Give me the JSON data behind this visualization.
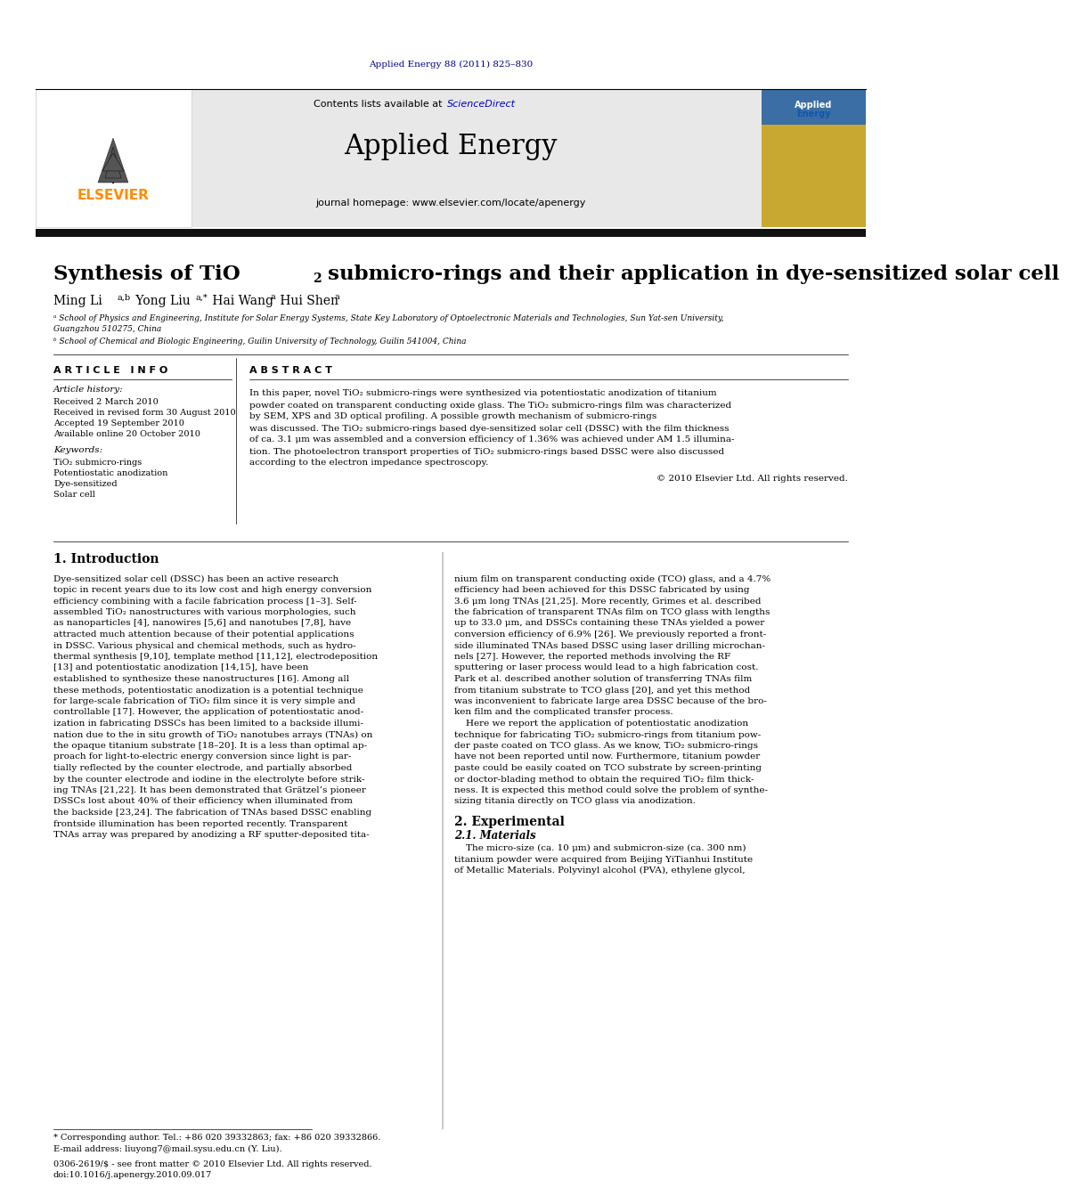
{
  "journal_ref": "Applied Energy 88 (2011) 825–830",
  "journal_ref_color": "#00008B",
  "header_bg": "#E8E8E8",
  "journal_name": "Applied Energy",
  "contents_line": "Contents lists available at ScienceDirect",
  "sciencedirect_color": "#0000CC",
  "homepage_line": "journal homepage: www.elsevier.com/locate/apenergy",
  "elsevier_color": "#FF8C00",
  "thick_bar_color": "#1a1a1a",
  "paper_title": "Synthesis of TiO₂ submicro-rings and their application in dye-sensitized solar cell",
  "affil_a": "ᵃ School of Physics and Engineering, Institute for Solar Energy Systems, State Key Laboratory of Optoelectronic Materials and Technologies, Sun Yat-sen University,",
  "affil_a2": "Guangzhou 510275, China",
  "affil_b": "ᵇ School of Chemical and Biologic Engineering, Guilin University of Technology, Guilin 541004, China",
  "article_info_title": "A R T I C L E   I N F O",
  "abstract_title": "A B S T R A C T",
  "article_history_label": "Article history:",
  "received": "Received 2 March 2010",
  "revised": "Received in revised form 30 August 2010",
  "accepted": "Accepted 19 September 2010",
  "online": "Available online 20 October 2010",
  "keywords_label": "Keywords:",
  "kw1": "TiO₂ submicro-rings",
  "kw2": "Potentiostatic anodization",
  "kw3": "Dye-sensitized",
  "kw4": "Solar cell",
  "abstract_text": "In this paper, novel TiO₂ submicro-rings were synthesized via potentiostatic anodization of titanium\npowder coated on transparent conducting oxide glass. The TiO₂ submicro-rings film was characterized\nby SEM, XPS and 3D optical profiling. A possible growth mechanism of submicro-rings\nwas discussed. The TiO₂ submicro-rings based dye-sensitized solar cell (DSSC) with the film thickness\nof ca. 3.1 μm was assembled and a conversion efficiency of 1.36% was achieved under AM 1.5 illumina-\ntion. The photoelectron transport properties of TiO₂ submicro-rings based DSSC were also discussed\naccording to the electron impedance spectroscopy.",
  "copyright": "© 2010 Elsevier Ltd. All rights reserved.",
  "intro_heading": "1. Introduction",
  "intro_col1": "Dye-sensitized solar cell (DSSC) has been an active research\ntopic in recent years due to its low cost and high energy conversion\nefficiency combining with a facile fabrication process [1–3]. Self-\nassembled TiO₂ nanostructures with various morphologies, such\nas nanoparticles [4], nanowires [5,6] and nanotubes [7,8], have\nattracted much attention because of their potential applications\nin DSSC. Various physical and chemical methods, such as hydro-\nthermal synthesis [9,10], template method [11,12], electrodeposition\n[13] and potentiostatic anodization [14,15], have been\nestablished to synthesize these nanostructures [16]. Among all\nthese methods, potentiostatic anodization is a potential technique\nfor large-scale fabrication of TiO₂ film since it is very simple and\ncontrollable [17]. However, the application of potentiostatic anod-\nization in fabricating DSSCs has been limited to a backside illumi-\nnation due to the in situ growth of TiO₂ nanotubes arrays (TNAs) on\nthe opaque titanium substrate [18–20]. It is a less than optimal ap-\nproach for light-to-electric energy conversion since light is par-\ntially reflected by the counter electrode, and partially absorbed\nby the counter electrode and iodine in the electrolyte before strik-\ning TNAs [21,22]. It has been demonstrated that Grätzel’s pioneer\nDSSCs lost about 40% of their efficiency when illuminated from\nthe backside [23,24]. The fabrication of TNAs based DSSC enabling\nfrontside illumination has been reported recently. Transparent\nTNAs array was prepared by anodizing a RF sputter-deposited tita-",
  "intro_col2": "nium film on transparent conducting oxide (TCO) glass, and a 4.7%\nefficiency had been achieved for this DSSC fabricated by using\n3.6 μm long TNAs [21,25]. More recently, Grimes et al. described\nthe fabrication of transparent TNAs film on TCO glass with lengths\nup to 33.0 μm, and DSSCs containing these TNAs yielded a power\nconversion efficiency of 6.9% [26]. We previously reported a front-\nside illuminated TNAs based DSSC using laser drilling microchan-\nnels [27]. However, the reported methods involving the RF\nsputtering or laser process would lead to a high fabrication cost.\nPark et al. described another solution of transferring TNAs film\nfrom titanium substrate to TCO glass [20], and yet this method\nwas inconvenient to fabricate large area DSSC because of the bro-\nken film and the complicated transfer process.\n    Here we report the application of potentiostatic anodization\ntechnique for fabricating TiO₂ submicro-rings from titanium pow-\nder paste coated on TCO glass. As we know, TiO₂ submicro-rings\nhave not been reported until now. Furthermore, titanium powder\npaste could be easily coated on TCO substrate by screen-printing\nor doctor-blading method to obtain the required TiO₂ film thick-\nness. It is expected this method could solve the problem of synthe-\nsizing titania directly on TCO glass via anodization.",
  "experimental_heading": "2. Experimental",
  "exp_sub": "2.1. Materials",
  "exp_text": "    The micro-size (ca. 10 μm) and submicron-size (ca. 300 nm)\ntitanium powder were acquired from Beijing YiTianhui Institute\nof Metallic Materials. Polyvinyl alcohol (PVA), ethylene glycol,",
  "footnote_star": "* Corresponding author. Tel.: +86 020 39332863; fax: +86 020 39332866.",
  "footnote_email": "E-mail address: liuyong7@mail.sysu.edu.cn (Y. Liu).",
  "footnote_issn": "0306-2619/$ - see front matter © 2010 Elsevier Ltd. All rights reserved.",
  "footnote_doi": "doi:10.1016/j.apenergy.2010.09.017"
}
